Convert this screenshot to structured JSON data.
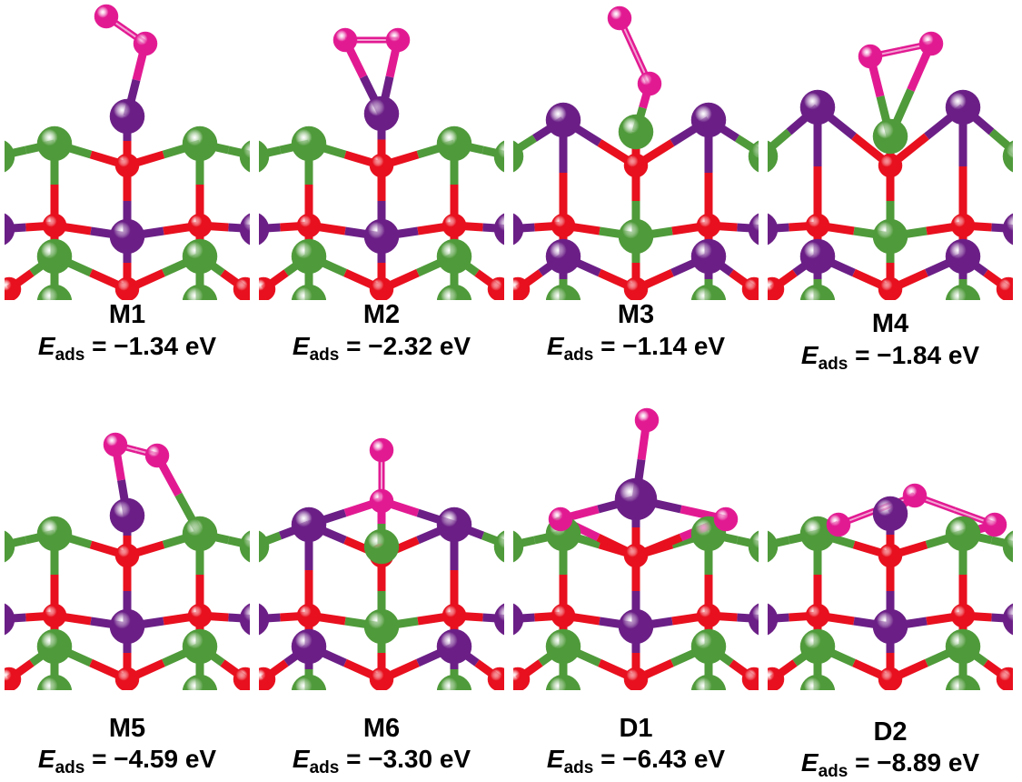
{
  "figure": {
    "panels": [
      {
        "id": "M1",
        "name": "M1",
        "energy_symbol": "E",
        "energy_subscript": "ads",
        "energy_text": "= −1.34 eV",
        "energy_value_eV": -1.34,
        "adsorbate": "O2 end-on on purple-atom top site"
      },
      {
        "id": "M2",
        "name": "M2",
        "energy_symbol": "E",
        "energy_subscript": "ads",
        "energy_text": "= −2.32 eV",
        "energy_value_eV": -2.32,
        "adsorbate": "O2 side-on on purple-atom top site"
      },
      {
        "id": "M3",
        "name": "M3",
        "energy_symbol": "E",
        "energy_subscript": "ads",
        "energy_text": "= −1.14 eV",
        "energy_value_eV": -1.14,
        "adsorbate": "O2 end-on on green-atom top site"
      },
      {
        "id": "M4",
        "name": "M4",
        "energy_symbol": "E",
        "energy_subscript": "ads",
        "energy_text": "= −1.84 eV",
        "energy_value_eV": -1.84,
        "adsorbate": "O2 side-on on green-atom top site"
      },
      {
        "id": "M5",
        "name": "M5",
        "energy_symbol": "E",
        "energy_subscript": "ads",
        "energy_text": "= −4.59 eV",
        "energy_value_eV": -4.59,
        "adsorbate": "O2 bridging purple and green atoms"
      },
      {
        "id": "M6",
        "name": "M6",
        "energy_symbol": "E",
        "energy_subscript": "ads",
        "energy_text": "= −3.30 eV",
        "energy_value_eV": -3.3,
        "adsorbate": "O2 end-on bridging two purple atoms"
      },
      {
        "id": "D1",
        "name": "D1",
        "energy_symbol": "E",
        "energy_subscript": "ads",
        "energy_text": "= −6.43 eV",
        "energy_value_eV": -6.43,
        "adsorbate": "dissociated O atoms"
      },
      {
        "id": "D2",
        "name": "D2",
        "energy_symbol": "E",
        "energy_subscript": "ads",
        "energy_text": "= −8.89 eV",
        "energy_value_eV": -8.89,
        "adsorbate": "dissociated O atoms in surface"
      }
    ]
  },
  "colors": {
    "green_atom": "#4f9a3a",
    "purple_atom": "#6b1f86",
    "red_atom": "#e8101e",
    "pink_atom": "#e21a92",
    "background": "#ffffff"
  }
}
